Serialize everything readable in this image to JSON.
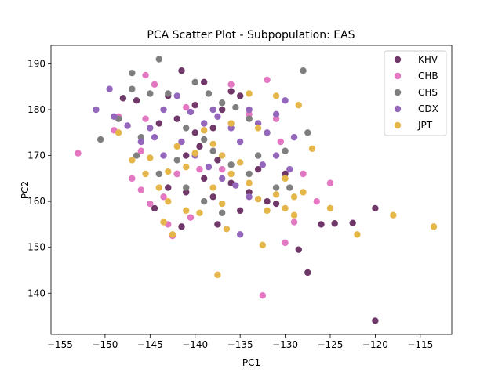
{
  "chart_data": {
    "type": "scatter",
    "title": "PCA Scatter Plot - Subpopulation: EAS",
    "xlabel": "PC1",
    "ylabel": "PC2",
    "xlim": [
      -156,
      -111.5
    ],
    "ylim": [
      131,
      194
    ],
    "xticks": [
      -155,
      -150,
      -145,
      -140,
      -135,
      -130,
      -125,
      -120,
      -115
    ],
    "yticks": [
      140,
      150,
      160,
      170,
      180,
      190
    ],
    "grid": false,
    "legend_position": "top-right",
    "series": [
      {
        "name": "KHV",
        "color": "#6f3868",
        "points": [
          [
            -141.5,
            188.5
          ],
          [
            -139,
            186
          ],
          [
            -146.5,
            182
          ],
          [
            -148,
            182.5
          ],
          [
            -143,
            183
          ],
          [
            -136,
            184
          ],
          [
            -135,
            183
          ],
          [
            -140,
            181
          ],
          [
            -137,
            180
          ],
          [
            -142,
            178
          ],
          [
            -144,
            177
          ],
          [
            -138,
            176
          ],
          [
            -140,
            175
          ],
          [
            -139.5,
            172
          ],
          [
            -141,
            170
          ],
          [
            -137.5,
            169
          ],
          [
            -142,
            166
          ],
          [
            -139,
            165
          ],
          [
            -136,
            164
          ],
          [
            -143,
            163
          ],
          [
            -141,
            162
          ],
          [
            -138,
            161
          ],
          [
            -134,
            162
          ],
          [
            -132,
            160
          ],
          [
            -131,
            159.5
          ],
          [
            -144.5,
            158.5
          ],
          [
            -141.5,
            154.5
          ],
          [
            -137.5,
            155
          ],
          [
            -135,
            158
          ],
          [
            -133,
            167
          ],
          [
            -130,
            166
          ],
          [
            -126,
            155
          ],
          [
            -124.5,
            155.2
          ],
          [
            -122.5,
            155.3
          ],
          [
            -120,
            158.5
          ],
          [
            -128.5,
            149.5
          ],
          [
            -127.5,
            144.5
          ],
          [
            -120,
            134
          ]
        ]
      },
      {
        "name": "CHB",
        "color": "#e377c2",
        "points": [
          [
            -153,
            170.5
          ],
          [
            -145.5,
            187.5
          ],
          [
            -144.5,
            185.5
          ],
          [
            -148.5,
            178.5
          ],
          [
            -149,
            175.5
          ],
          [
            -146,
            171
          ],
          [
            -147,
            165
          ],
          [
            -146,
            162.5
          ],
          [
            -145,
            159.5
          ],
          [
            -143.5,
            161
          ],
          [
            -142,
            166
          ],
          [
            -139.5,
            167
          ],
          [
            -137,
            167
          ],
          [
            -136,
            185.5
          ],
          [
            -134,
            179
          ],
          [
            -132,
            186.5
          ],
          [
            -131,
            178
          ],
          [
            -130.5,
            173
          ],
          [
            -128,
            166
          ],
          [
            -126.5,
            160
          ],
          [
            -125,
            164
          ],
          [
            -129,
            155.5
          ],
          [
            -130,
            151
          ],
          [
            -132.5,
            139.5
          ],
          [
            -143,
            155
          ],
          [
            -142.5,
            152.5
          ],
          [
            -140.5,
            156.5
          ],
          [
            -145.5,
            178
          ],
          [
            -141,
            180.5
          ]
        ]
      },
      {
        "name": "CHS",
        "color": "#7f7f7f",
        "points": [
          [
            -144,
            191
          ],
          [
            -147,
            188
          ],
          [
            -147,
            184.5
          ],
          [
            -145,
            183.5
          ],
          [
            -150.5,
            173.5
          ],
          [
            -148.5,
            178
          ],
          [
            -146,
            174
          ],
          [
            -143,
            183.5
          ],
          [
            -140,
            186
          ],
          [
            -138.5,
            183.5
          ],
          [
            -137,
            181.5
          ],
          [
            -135.5,
            180.5
          ],
          [
            -134,
            178
          ],
          [
            -141,
            176
          ],
          [
            -139,
            173.5
          ],
          [
            -138,
            171
          ],
          [
            -142,
            169
          ],
          [
            -136,
            168
          ],
          [
            -134,
            166
          ],
          [
            -131,
            163
          ],
          [
            -129.5,
            163
          ],
          [
            -127.5,
            175
          ],
          [
            -128,
            188.5
          ],
          [
            -144,
            166
          ],
          [
            -141,
            163
          ],
          [
            -139,
            160
          ],
          [
            -137,
            157.5
          ],
          [
            -133,
            170
          ],
          [
            -130,
            171
          ],
          [
            -146.5,
            170
          ]
        ]
      },
      {
        "name": "CDX",
        "color": "#9467bd",
        "points": [
          [
            -151,
            180
          ],
          [
            -149.5,
            184.5
          ],
          [
            -149,
            178.5
          ],
          [
            -147.5,
            176.5
          ],
          [
            -146,
            173
          ],
          [
            -145,
            176
          ],
          [
            -143.5,
            180
          ],
          [
            -142,
            183
          ],
          [
            -140.5,
            179.5
          ],
          [
            -139,
            177
          ],
          [
            -138,
            180
          ],
          [
            -137.5,
            178.5
          ],
          [
            -136,
            176
          ],
          [
            -135,
            173
          ],
          [
            -134,
            180
          ],
          [
            -133,
            177
          ],
          [
            -132,
            175
          ],
          [
            -131,
            179
          ],
          [
            -130,
            182
          ],
          [
            -129,
            174
          ],
          [
            -140,
            170
          ],
          [
            -138.5,
            167.5
          ],
          [
            -137,
            165
          ],
          [
            -135.5,
            163.5
          ],
          [
            -134,
            161
          ],
          [
            -132.5,
            168
          ],
          [
            -131,
            170
          ],
          [
            -129.5,
            167
          ],
          [
            -135,
            152.8
          ],
          [
            -143.5,
            170
          ],
          [
            -144.5,
            174
          ],
          [
            -141.5,
            173
          ]
        ]
      },
      {
        "name": "JPT",
        "color": "#e5b64a",
        "points": [
          [
            -148.5,
            175
          ],
          [
            -147,
            169
          ],
          [
            -145,
            169.5
          ],
          [
            -144,
            163
          ],
          [
            -143,
            166.5
          ],
          [
            -142,
            172
          ],
          [
            -141,
            167.5
          ],
          [
            -140,
            170.5
          ],
          [
            -139,
            175.5
          ],
          [
            -138,
            172.5
          ],
          [
            -137,
            170
          ],
          [
            -136,
            166
          ],
          [
            -135,
            168.5
          ],
          [
            -134,
            164
          ],
          [
            -133,
            160.5
          ],
          [
            -132,
            158
          ],
          [
            -131,
            161.5
          ],
          [
            -130,
            165
          ],
          [
            -129,
            161
          ],
          [
            -128,
            162
          ],
          [
            -130,
            158.5
          ],
          [
            -129,
            157
          ],
          [
            -127,
            171.5
          ],
          [
            -125,
            158.5
          ],
          [
            -122,
            152.8
          ],
          [
            -118,
            157
          ],
          [
            -113.5,
            154.5
          ],
          [
            -131,
            183
          ],
          [
            -128.5,
            181
          ],
          [
            -133,
            176
          ],
          [
            -134,
            183.5
          ],
          [
            -136,
            177
          ],
          [
            -143,
            160
          ],
          [
            -141,
            158
          ],
          [
            -139.5,
            157.5
          ],
          [
            -138,
            163
          ],
          [
            -136.5,
            154
          ],
          [
            -137,
            159.5
          ],
          [
            -132.5,
            150.5
          ],
          [
            -142.5,
            152.8
          ],
          [
            -143.5,
            155.5
          ],
          [
            -137.5,
            144
          ],
          [
            -145.5,
            166
          ]
        ]
      }
    ]
  }
}
